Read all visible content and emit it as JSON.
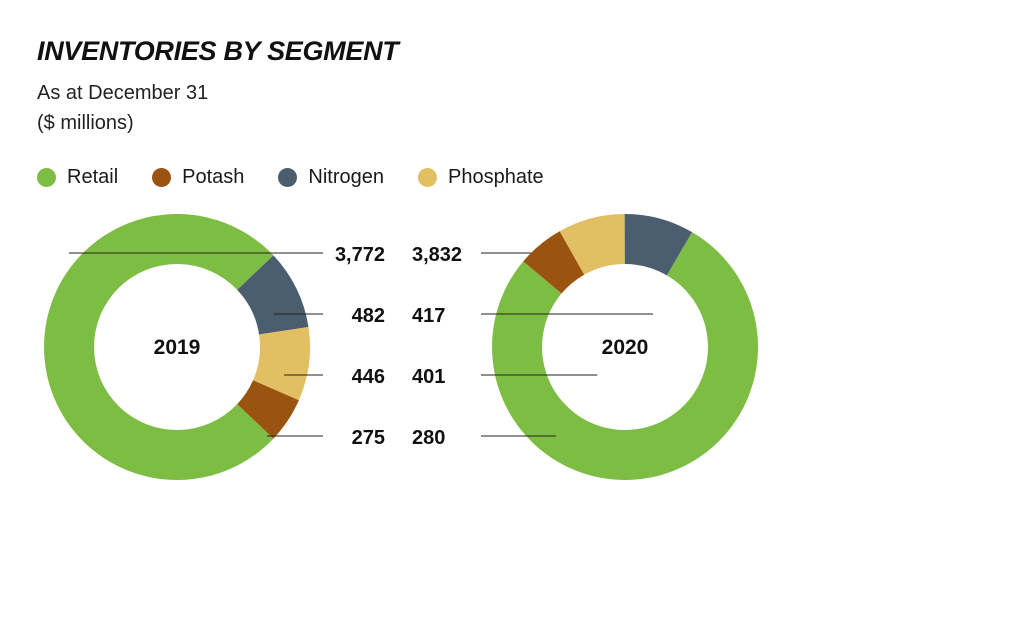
{
  "chart_data": {
    "type": "donut",
    "title": "INVENTORIES BY SEGMENT",
    "subtitle": "As at December 31",
    "units": "($ millions)",
    "categories": [
      "Retail",
      "Potash",
      "Nitrogen",
      "Phosphate"
    ],
    "colors": {
      "Retail": "#7dbd43",
      "Potash": "#9a5410",
      "Nitrogen": "#4b5e6f",
      "Phosphate": "#e2bf62"
    },
    "legend": [
      {
        "name": "Retail",
        "color": "#7dbd43"
      },
      {
        "name": "Potash",
        "color": "#9a5410"
      },
      {
        "name": "Nitrogen",
        "color": "#4b5e6f"
      },
      {
        "name": "Phosphate",
        "color": "#e2bf62"
      }
    ],
    "charts": [
      {
        "year": "2019",
        "values": {
          "Retail": 3772,
          "Nitrogen": 482,
          "Phosphate": 446,
          "Potash": 275
        },
        "labels": {
          "Retail": "3,772",
          "Nitrogen": "482",
          "Phosphate": "446",
          "Potash": "275"
        }
      },
      {
        "year": "2020",
        "values": {
          "Retail": 3832,
          "Nitrogen": 417,
          "Phosphate": 401,
          "Potash": 280
        },
        "labels": {
          "Retail": "3,832",
          "Nitrogen": "417",
          "Phosphate": "401",
          "Potash": "280"
        }
      }
    ]
  }
}
